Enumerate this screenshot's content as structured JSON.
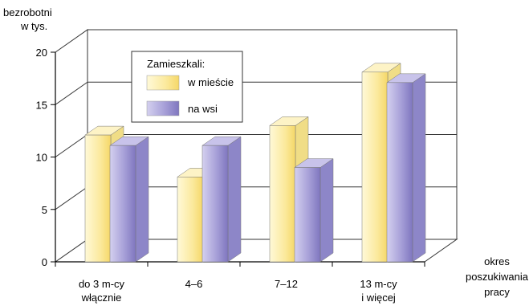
{
  "chart_data": {
    "type": "bar",
    "title": "",
    "ylabel": [
      "bezrobotni",
      "w tys."
    ],
    "xlabel": [
      "okres",
      "poszukiwania",
      "pracy"
    ],
    "categories": [
      [
        "do 3 m-cy",
        "włącznie"
      ],
      [
        "4–6"
      ],
      [
        "7–12"
      ],
      [
        "13 m-cy",
        "i więcej"
      ]
    ],
    "series": [
      {
        "name": "w mieście",
        "values": [
          12.1,
          8.1,
          13.0,
          18.1
        ],
        "color": "#f9e690"
      },
      {
        "name": "na wsi",
        "values": [
          11.1,
          11.1,
          9.0,
          17.1
        ],
        "color": "#9c95d0"
      }
    ],
    "ylim": [
      0,
      20
    ],
    "yticks": [
      "0",
      "5",
      "10",
      "15",
      "20"
    ],
    "legend": {
      "title": "Zamieszkali:",
      "position": "top-left"
    },
    "grid": true,
    "style": "3d"
  }
}
